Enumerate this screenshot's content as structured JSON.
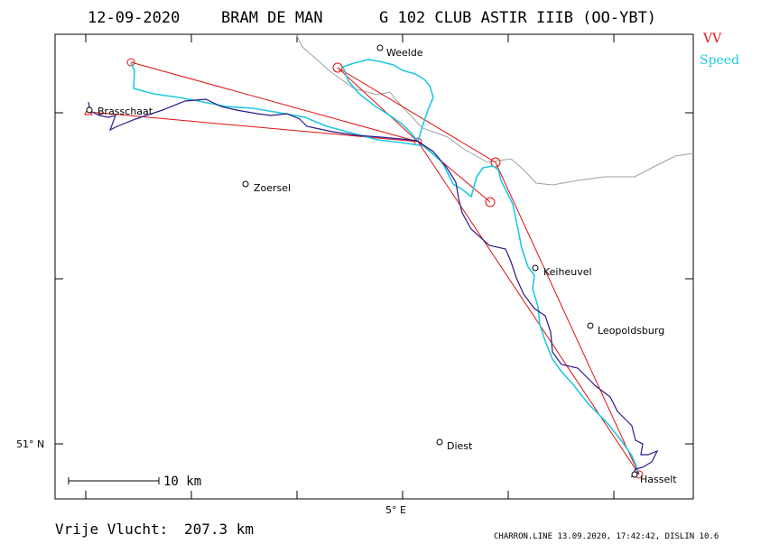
{
  "header": {
    "date": "12-09-2020",
    "pilot": "BRAM DE MAN",
    "glider": "G 102 CLUB ASTIR IIIB (OO-YBT)"
  },
  "legend": {
    "items": [
      {
        "label": "VV",
        "color": "#e01010"
      },
      {
        "label": "Speed",
        "color": "#22c8e0"
      }
    ]
  },
  "axes": {
    "lat_label": "51° N",
    "lon_label": "5° E"
  },
  "towns": [
    {
      "name": "Weelde"
    },
    {
      "name": "Brasschaat"
    },
    {
      "name": "Zoersel"
    },
    {
      "name": "Keiheuvel"
    },
    {
      "name": "Leopoldsburg"
    },
    {
      "name": "Diest"
    },
    {
      "name": "Hasselt"
    }
  ],
  "scale": {
    "label": "10 km"
  },
  "distance": {
    "label": "Vrije Vlucht:",
    "value": "207.3 km"
  },
  "footer": {
    "text": "CHARRON.LINE 13.09.2020, 17:42:42, DISLIN 10.6"
  },
  "colors": {
    "task": "#e01010",
    "speed_track": "#22c8e0",
    "vario_track": "#2a1a8a",
    "border": "#a0a0a0"
  }
}
